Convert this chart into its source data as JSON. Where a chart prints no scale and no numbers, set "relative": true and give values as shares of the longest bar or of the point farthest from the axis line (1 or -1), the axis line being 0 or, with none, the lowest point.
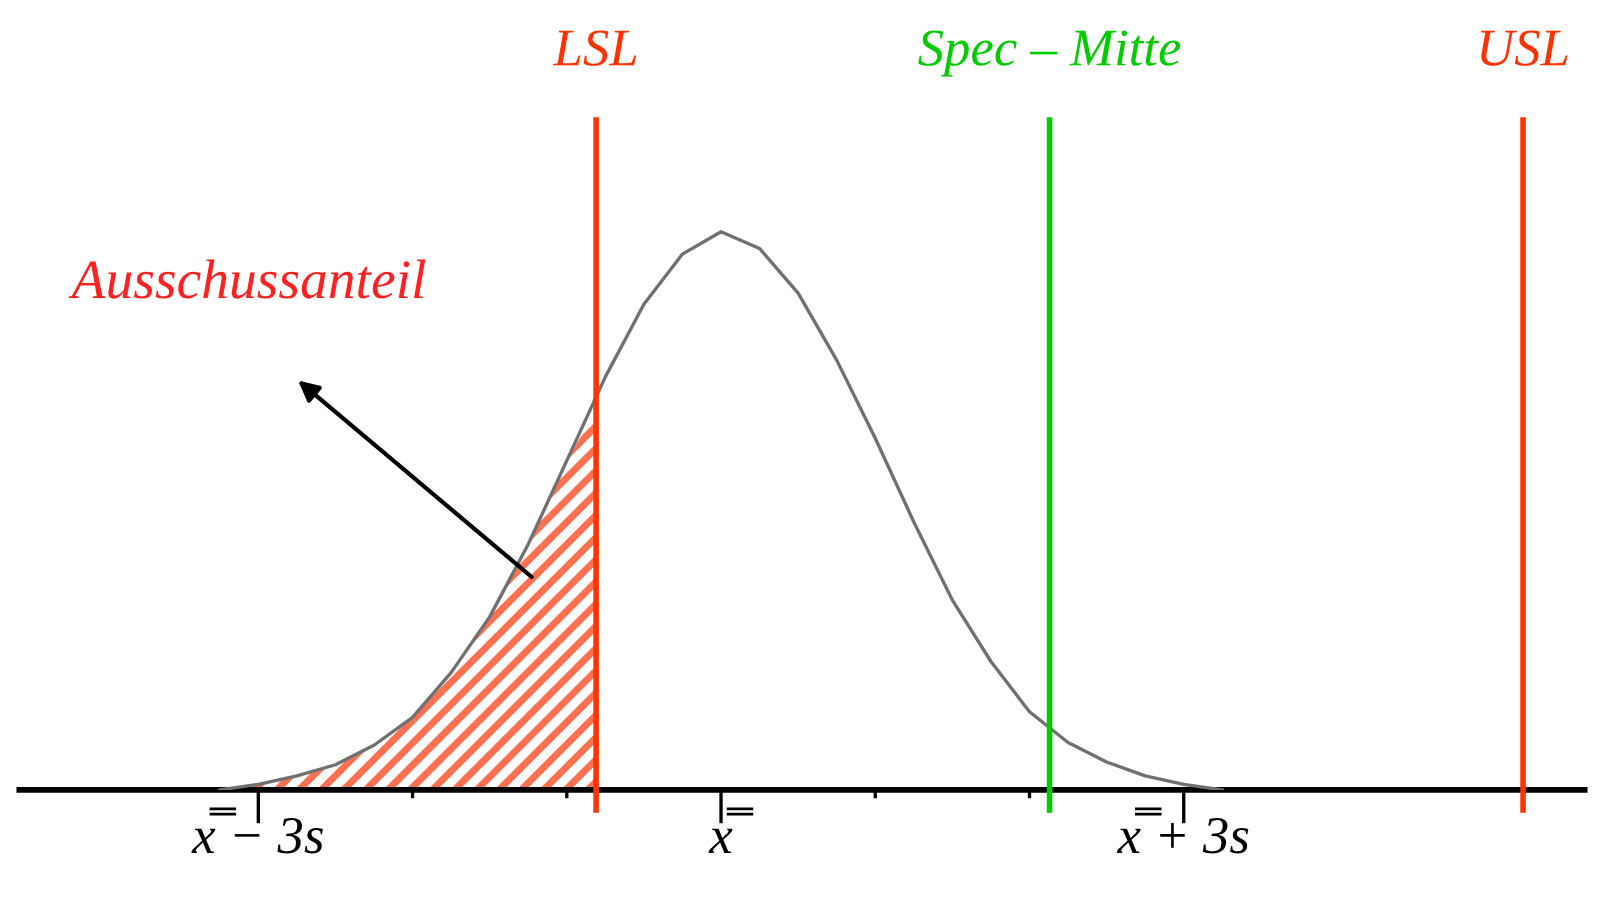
{
  "chart_data": {
    "type": "line",
    "relative": true,
    "x": [
      -3.25,
      -3,
      -2.75,
      -2.5,
      -2.25,
      -2,
      -1.75,
      -1.5,
      -1.25,
      -1,
      -0.75,
      -0.5,
      -0.25,
      0,
      0.25,
      0.5,
      0.75,
      1,
      1.25,
      1.5,
      1.75,
      2,
      2.25,
      2.5,
      2.75,
      3,
      3.25
    ],
    "series": [
      {
        "color": "#707070",
        "values": [
          0.0,
          0.01,
          0.025,
          0.045,
          0.08,
          0.13,
          0.21,
          0.31,
          0.44,
          0.59,
          0.74,
          0.87,
          0.96,
          1.0,
          0.97,
          0.89,
          0.77,
          0.63,
          0.48,
          0.34,
          0.23,
          0.14,
          0.085,
          0.05,
          0.025,
          0.01,
          0.0
        ]
      },
      {
        "type": "area",
        "color": "#ff7050",
        "x": [
          -3.25,
          -3,
          -2.75,
          -2.5,
          -2.25,
          -2,
          -1.75,
          -1.5,
          -1.25,
          -1,
          -0.81
        ],
        "values": [
          0.0,
          0.01,
          0.025,
          0.045,
          0.08,
          0.13,
          0.21,
          0.31,
          0.44,
          0.59,
          0.68
        ]
      }
    ],
    "xlim": [
      -4.55,
      5.6
    ],
    "xticks": [
      {
        "value": -3,
        "label": "x̿ − 3s"
      },
      {
        "value": -2,
        "label": null
      },
      {
        "value": -1,
        "label": null
      },
      {
        "value": 0,
        "label": "x̿"
      },
      {
        "value": 1,
        "label": null
      },
      {
        "value": 2,
        "label": null
      },
      {
        "value": 3,
        "label": "x̿ + 3s"
      }
    ],
    "tick_labels": "x",
    "ref_lines": [
      {
        "axis": "x",
        "value": -0.81,
        "label": "LSL",
        "color": "#ff3300"
      },
      {
        "axis": "x",
        "value": 2.13,
        "label": "Spec – Mitte",
        "color": "#00cc00"
      },
      {
        "axis": "x",
        "value": 5.2,
        "label": "USL",
        "color": "#ff3300"
      }
    ],
    "annotations": [
      "Ausschussanteil"
    ],
    "grid": false,
    "legend": false
  }
}
